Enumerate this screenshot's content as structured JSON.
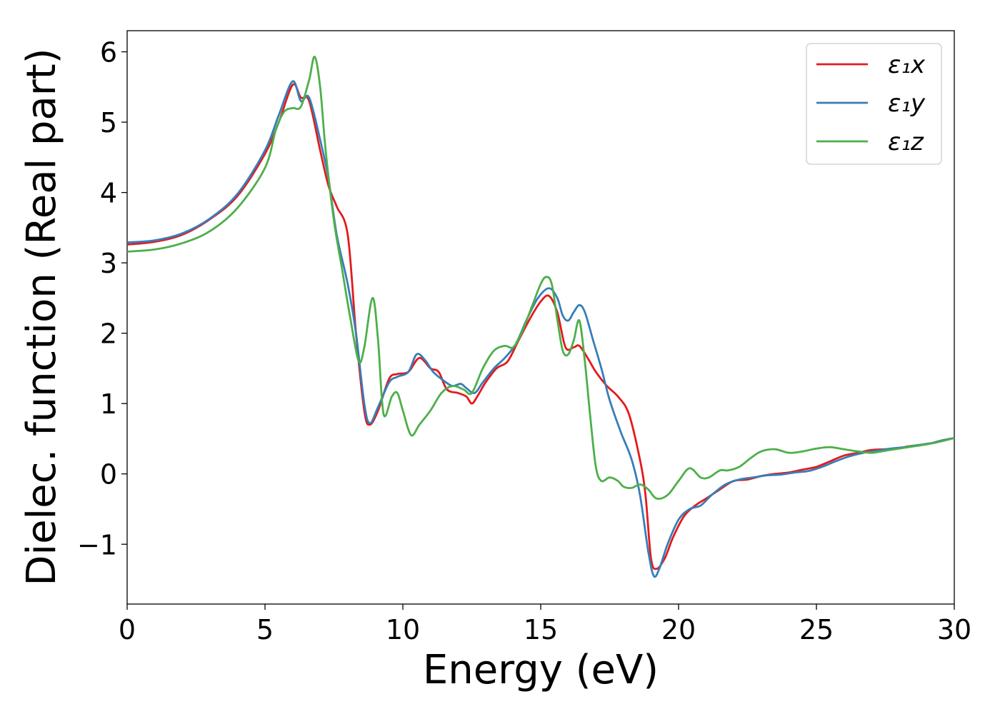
{
  "chart_data": {
    "type": "line",
    "title": "",
    "xlabel": "Energy (eV)",
    "ylabel": "Dielec. function (Real part)",
    "xlim": [
      0,
      30
    ],
    "ylim": [
      -1.85,
      6.3
    ],
    "xticks": [
      0,
      5,
      10,
      15,
      20,
      25,
      30
    ],
    "xtick_labels": [
      "0",
      "5",
      "10",
      "15",
      "20",
      "25",
      "30"
    ],
    "yticks": [
      -1,
      0,
      1,
      2,
      3,
      4,
      5,
      6
    ],
    "ytick_labels": [
      "−1",
      "0",
      "1",
      "2",
      "3",
      "4",
      "5",
      "6"
    ],
    "grid": false,
    "legend_position": "top-right",
    "series": [
      {
        "name": "ε₁x",
        "color": "#e41a1c",
        "points": [
          [
            0,
            3.26
          ],
          [
            1,
            3.3
          ],
          [
            2,
            3.4
          ],
          [
            3,
            3.62
          ],
          [
            4,
            3.95
          ],
          [
            5,
            4.55
          ],
          [
            5.5,
            5.0
          ],
          [
            6,
            5.53
          ],
          [
            6.3,
            5.35
          ],
          [
            6.6,
            5.3
          ],
          [
            7,
            4.6
          ],
          [
            7.3,
            4.1
          ],
          [
            7.6,
            3.8
          ],
          [
            8,
            3.4
          ],
          [
            8.3,
            2.0
          ],
          [
            8.6,
            0.9
          ],
          [
            8.8,
            0.7
          ],
          [
            9.1,
            0.9
          ],
          [
            9.5,
            1.35
          ],
          [
            9.8,
            1.42
          ],
          [
            10.2,
            1.45
          ],
          [
            10.6,
            1.65
          ],
          [
            11,
            1.5
          ],
          [
            11.3,
            1.45
          ],
          [
            11.6,
            1.2
          ],
          [
            12,
            1.15
          ],
          [
            12.3,
            1.1
          ],
          [
            12.5,
            1.0
          ],
          [
            12.7,
            1.1
          ],
          [
            13,
            1.3
          ],
          [
            13.4,
            1.5
          ],
          [
            13.8,
            1.6
          ],
          [
            14.2,
            1.9
          ],
          [
            14.6,
            2.2
          ],
          [
            15,
            2.45
          ],
          [
            15.3,
            2.53
          ],
          [
            15.6,
            2.3
          ],
          [
            15.9,
            1.8
          ],
          [
            16.2,
            1.8
          ],
          [
            16.4,
            1.82
          ],
          [
            16.7,
            1.65
          ],
          [
            17,
            1.45
          ],
          [
            17.4,
            1.25
          ],
          [
            17.8,
            1.1
          ],
          [
            18.2,
            0.85
          ],
          [
            18.6,
            0.2
          ],
          [
            18.8,
            -0.3
          ],
          [
            19,
            -1.2
          ],
          [
            19.2,
            -1.35
          ],
          [
            19.5,
            -1.2
          ],
          [
            19.8,
            -0.9
          ],
          [
            20.2,
            -0.6
          ],
          [
            20.6,
            -0.45
          ],
          [
            21,
            -0.35
          ],
          [
            21.5,
            -0.22
          ],
          [
            22,
            -0.1
          ],
          [
            22.5,
            -0.08
          ],
          [
            23,
            -0.03
          ],
          [
            23.5,
            0
          ],
          [
            24,
            0.02
          ],
          [
            24.5,
            0.06
          ],
          [
            25,
            0.1
          ],
          [
            25.5,
            0.18
          ],
          [
            26,
            0.26
          ],
          [
            26.5,
            0.3
          ],
          [
            27,
            0.34
          ],
          [
            27.5,
            0.35
          ],
          [
            28,
            0.37
          ],
          [
            28.5,
            0.4
          ],
          [
            29,
            0.42
          ],
          [
            29.5,
            0.47
          ],
          [
            30,
            0.51
          ]
        ]
      },
      {
        "name": "ε₁y",
        "color": "#377eb8",
        "points": [
          [
            0,
            3.29
          ],
          [
            1,
            3.32
          ],
          [
            2,
            3.42
          ],
          [
            3,
            3.63
          ],
          [
            4,
            3.98
          ],
          [
            5,
            4.6
          ],
          [
            5.5,
            5.1
          ],
          [
            6,
            5.58
          ],
          [
            6.3,
            5.3
          ],
          [
            6.6,
            5.35
          ],
          [
            7,
            4.75
          ],
          [
            7.3,
            4.2
          ],
          [
            7.6,
            3.4
          ],
          [
            8,
            2.7
          ],
          [
            8.3,
            2.0
          ],
          [
            8.6,
            1.0
          ],
          [
            8.8,
            0.72
          ],
          [
            9.1,
            0.95
          ],
          [
            9.5,
            1.3
          ],
          [
            9.8,
            1.38
          ],
          [
            10.2,
            1.45
          ],
          [
            10.5,
            1.7
          ],
          [
            10.8,
            1.62
          ],
          [
            11.1,
            1.45
          ],
          [
            11.5,
            1.32
          ],
          [
            11.8,
            1.25
          ],
          [
            12.1,
            1.28
          ],
          [
            12.3,
            1.22
          ],
          [
            12.6,
            1.15
          ],
          [
            12.9,
            1.3
          ],
          [
            13.3,
            1.5
          ],
          [
            13.7,
            1.65
          ],
          [
            14.1,
            1.85
          ],
          [
            14.5,
            2.2
          ],
          [
            14.9,
            2.5
          ],
          [
            15.3,
            2.64
          ],
          [
            15.6,
            2.5
          ],
          [
            15.8,
            2.25
          ],
          [
            16,
            2.18
          ],
          [
            16.2,
            2.3
          ],
          [
            16.4,
            2.4
          ],
          [
            16.6,
            2.3
          ],
          [
            16.9,
            1.9
          ],
          [
            17.2,
            1.5
          ],
          [
            17.5,
            1.05
          ],
          [
            17.9,
            0.6
          ],
          [
            18.3,
            0.2
          ],
          [
            18.6,
            -0.3
          ],
          [
            18.9,
            -1.1
          ],
          [
            19.1,
            -1.45
          ],
          [
            19.3,
            -1.35
          ],
          [
            19.6,
            -1.0
          ],
          [
            20,
            -0.65
          ],
          [
            20.4,
            -0.5
          ],
          [
            20.8,
            -0.45
          ],
          [
            21.2,
            -0.3
          ],
          [
            21.7,
            -0.15
          ],
          [
            22.2,
            -0.08
          ],
          [
            22.7,
            -0.05
          ],
          [
            23.2,
            -0.02
          ],
          [
            23.7,
            -0.01
          ],
          [
            24.2,
            0.02
          ],
          [
            24.7,
            0.04
          ],
          [
            25.2,
            0.1
          ],
          [
            25.7,
            0.18
          ],
          [
            26.2,
            0.25
          ],
          [
            26.7,
            0.3
          ],
          [
            27.2,
            0.33
          ],
          [
            27.7,
            0.36
          ],
          [
            28.2,
            0.38
          ],
          [
            28.7,
            0.41
          ],
          [
            29.2,
            0.44
          ],
          [
            29.6,
            0.48
          ],
          [
            30,
            0.51
          ]
        ]
      },
      {
        "name": "ε₁z",
        "color": "#4daf4a",
        "points": [
          [
            0,
            3.16
          ],
          [
            1,
            3.19
          ],
          [
            2,
            3.28
          ],
          [
            3,
            3.45
          ],
          [
            4,
            3.78
          ],
          [
            5,
            4.35
          ],
          [
            5.4,
            4.9
          ],
          [
            5.7,
            5.15
          ],
          [
            6,
            5.2
          ],
          [
            6.3,
            5.22
          ],
          [
            6.6,
            5.6
          ],
          [
            6.8,
            5.93
          ],
          [
            7,
            5.5
          ],
          [
            7.2,
            4.6
          ],
          [
            7.5,
            3.6
          ],
          [
            7.8,
            2.9
          ],
          [
            8.1,
            2.2
          ],
          [
            8.4,
            1.6
          ],
          [
            8.6,
            1.8
          ],
          [
            8.9,
            2.5
          ],
          [
            9.1,
            1.9
          ],
          [
            9.3,
            0.85
          ],
          [
            9.6,
            1.1
          ],
          [
            9.8,
            1.15
          ],
          [
            10,
            0.9
          ],
          [
            10.3,
            0.55
          ],
          [
            10.6,
            0.7
          ],
          [
            11,
            0.9
          ],
          [
            11.4,
            1.15
          ],
          [
            11.8,
            1.25
          ],
          [
            12.2,
            1.2
          ],
          [
            12.5,
            1.15
          ],
          [
            12.9,
            1.5
          ],
          [
            13.3,
            1.75
          ],
          [
            13.7,
            1.82
          ],
          [
            14,
            1.8
          ],
          [
            14.3,
            2.0
          ],
          [
            14.7,
            2.4
          ],
          [
            15,
            2.7
          ],
          [
            15.2,
            2.8
          ],
          [
            15.4,
            2.7
          ],
          [
            15.6,
            2.2
          ],
          [
            15.8,
            1.75
          ],
          [
            16,
            1.7
          ],
          [
            16.2,
            1.9
          ],
          [
            16.4,
            2.18
          ],
          [
            16.6,
            1.6
          ],
          [
            16.8,
            0.8
          ],
          [
            17,
            0.1
          ],
          [
            17.2,
            -0.1
          ],
          [
            17.5,
            -0.05
          ],
          [
            17.8,
            -0.1
          ],
          [
            18,
            -0.18
          ],
          [
            18.3,
            -0.2
          ],
          [
            18.6,
            -0.15
          ],
          [
            18.9,
            -0.22
          ],
          [
            19.2,
            -0.35
          ],
          [
            19.6,
            -0.3
          ],
          [
            20,
            -0.1
          ],
          [
            20.4,
            0.08
          ],
          [
            20.8,
            -0.05
          ],
          [
            21.1,
            -0.05
          ],
          [
            21.5,
            0.05
          ],
          [
            21.8,
            0.05
          ],
          [
            22.2,
            0.1
          ],
          [
            22.6,
            0.22
          ],
          [
            23,
            0.32
          ],
          [
            23.5,
            0.35
          ],
          [
            24,
            0.3
          ],
          [
            24.5,
            0.32
          ],
          [
            25,
            0.36
          ],
          [
            25.5,
            0.38
          ],
          [
            26,
            0.35
          ],
          [
            26.5,
            0.32
          ],
          [
            27,
            0.3
          ],
          [
            27.5,
            0.33
          ],
          [
            28,
            0.36
          ],
          [
            28.5,
            0.39
          ],
          [
            29,
            0.42
          ],
          [
            29.5,
            0.46
          ],
          [
            30,
            0.51
          ]
        ]
      }
    ]
  }
}
